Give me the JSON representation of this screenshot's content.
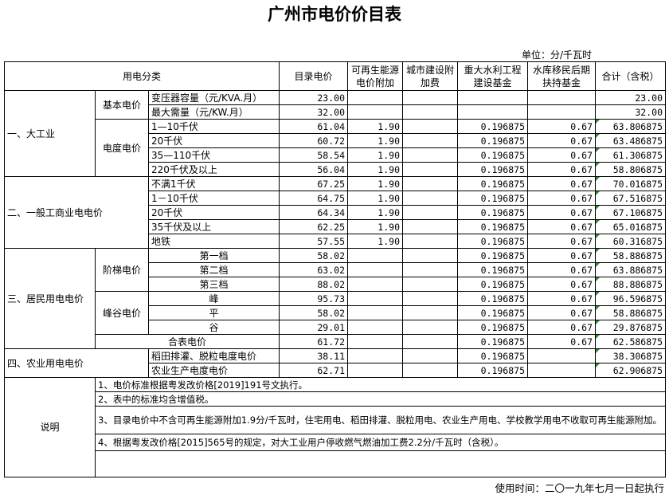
{
  "title": "广州市电价价目表",
  "unit": "单位：分/千瓦时",
  "headers": [
    "用电分类",
    "目录电价",
    "可再生能源电价附加",
    "城市建设附加费",
    "重大水利工程建设基金",
    "水库移民后期扶持基金",
    "合计（含税）"
  ],
  "categories": {
    "large_industry": "一、大工业",
    "basic_price": "基本电价",
    "energy_price": "电度电价",
    "general_commercial": "二、一般工商业电电价",
    "residential": "三、居民用电电价",
    "tiered": "阶梯电价",
    "peak_valley": "峰谷电价",
    "agriculture": "四、农业用电电价",
    "notes_label": "说明"
  },
  "rows": [
    {
      "item": "变压器容量（元/KVA.月）",
      "catalog": "23.00",
      "renew": "",
      "city": "",
      "water": "",
      "resettle": "",
      "total": "23.00"
    },
    {
      "item": "最大需量（元/KW.月）",
      "catalog": "32.00",
      "renew": "",
      "city": "",
      "water": "",
      "resettle": "",
      "total": "32.00"
    },
    {
      "item": "1—10千伏",
      "catalog": "61.04",
      "renew": "1.90",
      "city": "",
      "water": "0.196875",
      "resettle": "0.67",
      "total": "63.806875"
    },
    {
      "item": "20千伏",
      "catalog": "60.72",
      "renew": "1.90",
      "city": "",
      "water": "0.196875",
      "resettle": "0.67",
      "total": "63.486875"
    },
    {
      "item": "35—110千伏",
      "catalog": "58.54",
      "renew": "1.90",
      "city": "",
      "water": "0.196875",
      "resettle": "0.67",
      "total": "61.306875"
    },
    {
      "item": "220千伏及以上",
      "catalog": "56.04",
      "renew": "1.90",
      "city": "",
      "water": "0.196875",
      "resettle": "0.67",
      "total": "58.806875"
    },
    {
      "item": "不满1千伏",
      "catalog": "67.25",
      "renew": "1.90",
      "city": "",
      "water": "0.196875",
      "resettle": "0.67",
      "total": "70.016875"
    },
    {
      "item": "1－10千伏",
      "catalog": "64.75",
      "renew": "1.90",
      "city": "",
      "water": "0.196875",
      "resettle": "0.67",
      "total": "67.516875"
    },
    {
      "item": "20千伏",
      "catalog": "64.34",
      "renew": "1.90",
      "city": "",
      "water": "0.196875",
      "resettle": "0.67",
      "total": "67.106875"
    },
    {
      "item": "35千伏及以上",
      "catalog": "62.25",
      "renew": "1.90",
      "city": "",
      "water": "0.196875",
      "resettle": "0.67",
      "total": "65.016875"
    },
    {
      "item": "地铁",
      "catalog": "57.55",
      "renew": "1.90",
      "city": "",
      "water": "0.196875",
      "resettle": "0.67",
      "total": "60.316875"
    },
    {
      "item": "第一档",
      "catalog": "58.02",
      "renew": "",
      "city": "",
      "water": "0.196875",
      "resettle": "0.67",
      "total": "58.886875"
    },
    {
      "item": "第二档",
      "catalog": "63.02",
      "renew": "",
      "city": "",
      "water": "0.196875",
      "resettle": "0.67",
      "total": "63.886875"
    },
    {
      "item": "第三档",
      "catalog": "88.02",
      "renew": "",
      "city": "",
      "water": "0.196875",
      "resettle": "0.67",
      "total": "88.886875"
    },
    {
      "item": "峰",
      "catalog": "95.73",
      "renew": "",
      "city": "",
      "water": "0.196875",
      "resettle": "0.67",
      "total": "96.596875"
    },
    {
      "item": "平",
      "catalog": "58.02",
      "renew": "",
      "city": "",
      "water": "0.196875",
      "resettle": "0.67",
      "total": "58.886875"
    },
    {
      "item": "谷",
      "catalog": "29.01",
      "renew": "",
      "city": "",
      "water": "0.196875",
      "resettle": "0.67",
      "total": "29.876875"
    },
    {
      "item": "合表电价",
      "catalog": "61.72",
      "renew": "",
      "city": "",
      "water": "0.196875",
      "resettle": "0.67",
      "total": "62.586875"
    },
    {
      "item": "稻田排灌、脱粒电度电价",
      "catalog": "38.11",
      "renew": "",
      "city": "",
      "water": "0.196875",
      "resettle": "",
      "total": "38.306875"
    },
    {
      "item": "农业生产电度电价",
      "catalog": "62.71",
      "renew": "",
      "city": "",
      "water": "0.196875",
      "resettle": "",
      "total": "62.906875"
    }
  ],
  "notes": [
    "1、电价标准根据粤发改价格[2019]191号文执行。",
    "2、表中的标准均含增值税。",
    "3、目录电价中不含可再生能源附加1.9分/千瓦时，住宅用电、稻田排灌、脱粒用电、农业生产用电、学校教学用电不收取可再生能源附加。",
    "4、根据粤发改价格[2015]565号的规定，对大工业用户停收燃气燃油加工费2.2分/千瓦时（含税）。",
    ""
  ],
  "footer": "使用时间：二〇一九年七月一日起执行"
}
